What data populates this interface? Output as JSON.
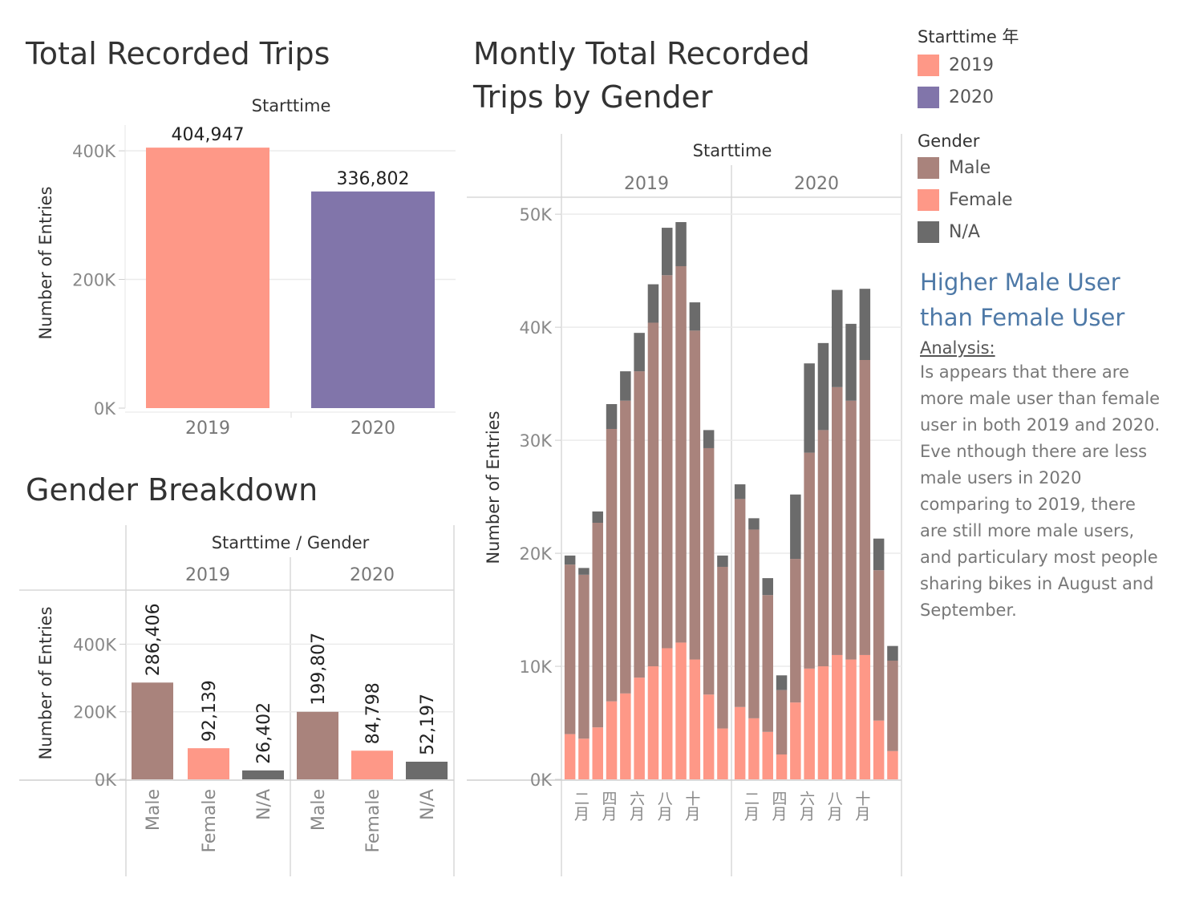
{
  "colors": {
    "y2019": "#fe9887",
    "y2020": "#8175aa",
    "male": "#a9837c",
    "female": "#fe9887",
    "na": "#6b6b6b"
  },
  "panel1": {
    "title": "Total Recorded Trips",
    "header": "Starttime",
    "ylabel": "Number of Entries"
  },
  "panel2": {
    "title": "Gender Breakdown",
    "header": "Starttime / Gender",
    "ylabel": "Number of Entries"
  },
  "panel3": {
    "title_line1": "Montly Total Recorded",
    "title_line2": "Trips by Gender",
    "header": "Starttime",
    "ylabel": "Number of Entries"
  },
  "legend": {
    "year_title": "Starttime 年",
    "year_items": [
      "2019",
      "2020"
    ],
    "gender_title": "Gender",
    "gender_items": [
      "Male",
      "Female",
      "N/A"
    ]
  },
  "insight": {
    "title": "Higher Male User than Female User",
    "subtitle": "Analysis:",
    "body": "Is appears that there are more male user than female user in both 2019 and 2020. Eve nthough there are less male users in 2020 comparing to 2019, there are still more male users, and particulary most people sharing bikes in August and September."
  },
  "chart_data": [
    {
      "type": "bar",
      "title": "Total Recorded Trips",
      "header": "Starttime",
      "ylabel": "Number of Entries",
      "categories": [
        "2019",
        "2020"
      ],
      "values": [
        404947,
        336802
      ],
      "value_labels": [
        "404,947",
        "336,802"
      ],
      "ylim": [
        0,
        440000
      ],
      "yticks": [
        0,
        200000,
        400000
      ],
      "ytick_labels": [
        "0K",
        "200K",
        "400K"
      ],
      "grid": true
    },
    {
      "type": "bar",
      "title": "Gender Breakdown",
      "header": "Starttime / Gender",
      "ylabel": "Number of Entries",
      "groups": [
        "2019",
        "2020"
      ],
      "categories": [
        "Male",
        "Female",
        "N/A"
      ],
      "values": [
        [
          286406,
          92139,
          26402
        ],
        [
          199807,
          84798,
          52197
        ]
      ],
      "value_labels": [
        [
          "286,406",
          "92,139",
          "26,402"
        ],
        [
          "199,807",
          "84,798",
          "52,197"
        ]
      ],
      "ylim": [
        0,
        560000
      ],
      "yticks": [
        0,
        200000,
        400000
      ],
      "ytick_labels": [
        "0K",
        "200K",
        "400K"
      ],
      "grid": true
    },
    {
      "type": "bar",
      "stacked": true,
      "title": "Montly Total Recorded Trips by Gender",
      "header": "Starttime",
      "ylabel": "Number of Entries",
      "groups": [
        "2019",
        "2020"
      ],
      "months": [
        "一月",
        "二月",
        "三月",
        "四月",
        "五月",
        "六月",
        "七月",
        "八月",
        "九月",
        "十月",
        "十一月",
        "十二月"
      ],
      "month_tick_labels": [
        "二月",
        "四月",
        "六月",
        "八月",
        "十月"
      ],
      "ylim": [
        0,
        51500
      ],
      "yticks": [
        0,
        10000,
        20000,
        30000,
        40000,
        50000
      ],
      "ytick_labels": [
        "0K",
        "10K",
        "20K",
        "30K",
        "40K",
        "50K"
      ],
      "series_order": [
        "Female",
        "Male",
        "N/A"
      ],
      "data": {
        "2019": {
          "Female": [
            4000,
            3600,
            4600,
            6900,
            7600,
            9000,
            10000,
            11600,
            12100,
            10600,
            7500,
            4500
          ],
          "Male": [
            15000,
            14500,
            18100,
            24100,
            25900,
            27100,
            30400,
            33000,
            33300,
            29100,
            21800,
            14300
          ],
          "N/A": [
            800,
            600,
            1000,
            2200,
            2600,
            3400,
            3400,
            4200,
            3900,
            2500,
            1600,
            1000
          ]
        },
        "2020": {
          "Female": [
            6400,
            5400,
            4200,
            2200,
            6800,
            9800,
            10000,
            11000,
            10600,
            11000,
            5200,
            2500
          ],
          "Male": [
            18400,
            16700,
            12100,
            5700,
            12700,
            19100,
            20900,
            23700,
            22900,
            26100,
            13300,
            8000
          ],
          "N/A": [
            1300,
            1000,
            1500,
            1300,
            5700,
            7900,
            7700,
            8600,
            6800,
            6300,
            2800,
            1300
          ]
        }
      }
    }
  ]
}
